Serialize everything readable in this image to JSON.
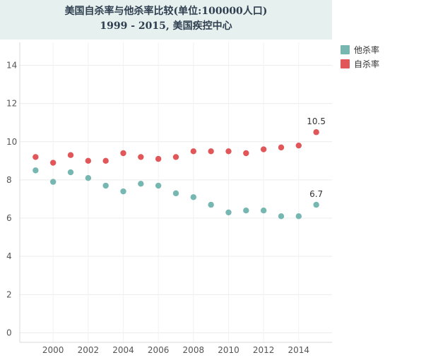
{
  "title": {
    "line1": "美国自杀率与他杀率比较(单位:100000人口)",
    "line2": "1999 - 2015, 美国疾控中心"
  },
  "chart_data": {
    "type": "scatter",
    "x": [
      1999,
      2000,
      2001,
      2002,
      2003,
      2004,
      2005,
      2006,
      2007,
      2008,
      2009,
      2010,
      2011,
      2012,
      2013,
      2014,
      2015
    ],
    "series": [
      {
        "name": "他杀率",
        "color": "#76b7b2",
        "values": [
          8.5,
          7.9,
          8.4,
          8.1,
          7.7,
          7.4,
          7.8,
          7.7,
          7.3,
          7.1,
          6.7,
          6.3,
          6.4,
          6.4,
          6.1,
          6.1,
          6.7
        ],
        "end_label": "6.7"
      },
      {
        "name": "自杀率",
        "color": "#e15759",
        "values": [
          9.2,
          8.9,
          9.3,
          9.0,
          9.0,
          9.4,
          9.2,
          9.1,
          9.2,
          9.5,
          9.5,
          9.5,
          9.4,
          9.6,
          9.7,
          9.8,
          10.5
        ],
        "end_label": "10.5"
      }
    ],
    "xticks": [
      "2000",
      "2002",
      "2004",
      "2006",
      "2008",
      "2010",
      "2012",
      "2014"
    ],
    "yticks": [
      "0",
      "2",
      "4",
      "6",
      "8",
      "10",
      "12",
      "14"
    ],
    "xlim": [
      1998.1,
      2015.9
    ],
    "ylim": [
      -0.5,
      15.2
    ],
    "grid": true,
    "legend_position": "right"
  },
  "legend": {
    "items": [
      {
        "label": "他杀率",
        "color": "#76b7b2"
      },
      {
        "label": "自杀率",
        "color": "#e15759"
      }
    ]
  }
}
